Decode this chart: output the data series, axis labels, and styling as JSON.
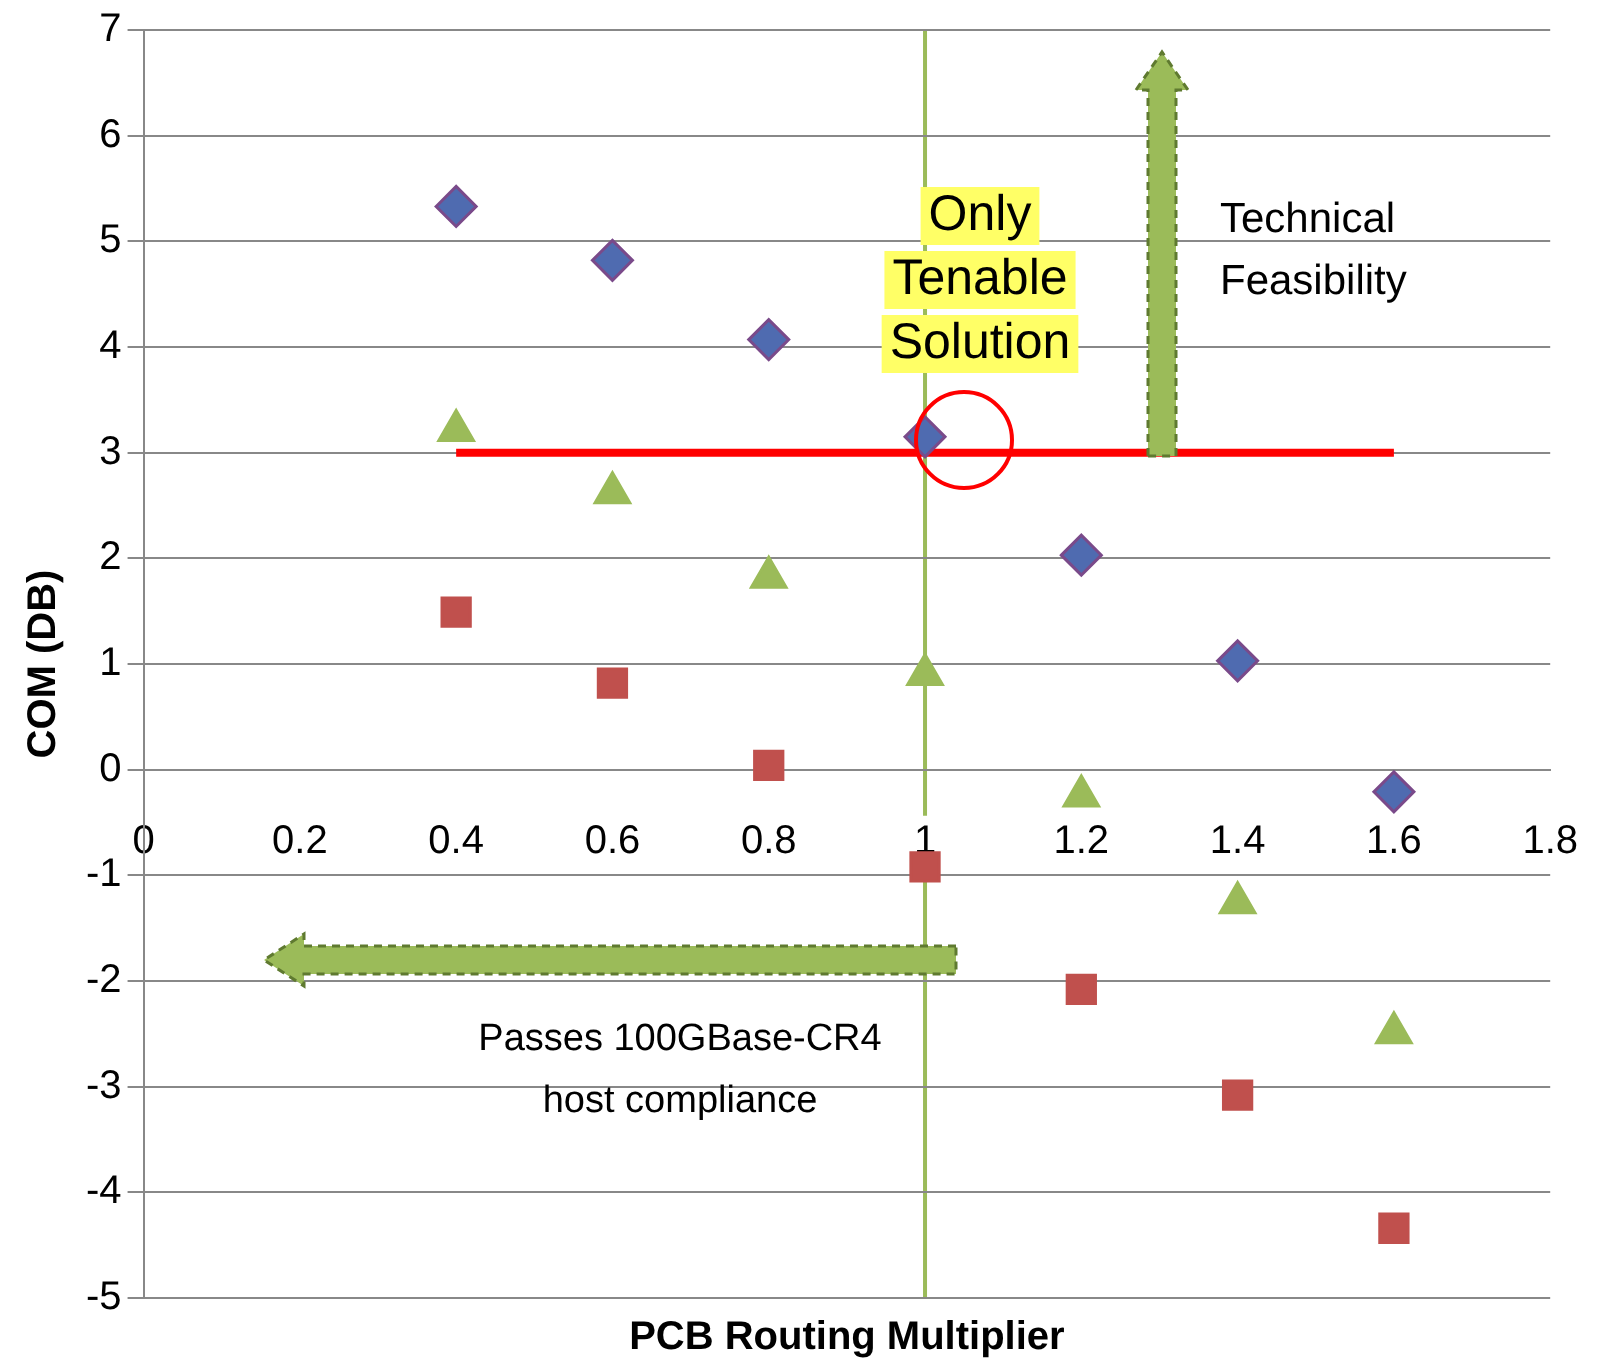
{
  "chart_data": {
    "type": "scatter",
    "xlabel": "PCB Routing Multiplier",
    "ylabel": "COM (DB)",
    "xlim": [
      0,
      1.8
    ],
    "ylim": [
      -5,
      7
    ],
    "xticks": [
      0,
      0.2,
      0.4,
      0.6,
      0.8,
      1,
      1.2,
      1.4,
      1.6,
      1.8
    ],
    "yticks": [
      -5,
      -4,
      -3,
      -2,
      -1,
      0,
      1,
      2,
      3,
      4,
      5,
      6,
      7
    ],
    "grid": "y",
    "x": [
      0.4,
      0.6,
      0.8,
      1.0,
      1.2,
      1.4,
      1.6
    ],
    "series": [
      {
        "color": "#4f6bb0",
        "marker": "diamond",
        "values": [
          5.33,
          4.82,
          4.07,
          3.15,
          2.03,
          1.03,
          -0.21
        ]
      },
      {
        "color": "#9bbb59",
        "marker": "triangle",
        "values": [
          3.21,
          2.62,
          1.82,
          0.9,
          -0.25,
          -1.26,
          -2.49
        ]
      },
      {
        "color": "#c0504d",
        "marker": "square",
        "values": [
          1.49,
          0.82,
          0.04,
          -0.92,
          -2.08,
          -3.08,
          -4.34
        ]
      },
      {
        "type": "line",
        "color": "#ff0000",
        "marker": "none",
        "x": [
          0.4,
          1.6
        ],
        "values": [
          3,
          3
        ]
      }
    ],
    "ref_lines": [
      {
        "axis": "x",
        "value": 1,
        "color": "#9bbb59"
      }
    ],
    "annotations": [
      "Only\nTenable\nSolution",
      "Technical\nFeasibility",
      "Passes 100GBase-CR4\nhost compliance"
    ]
  }
}
